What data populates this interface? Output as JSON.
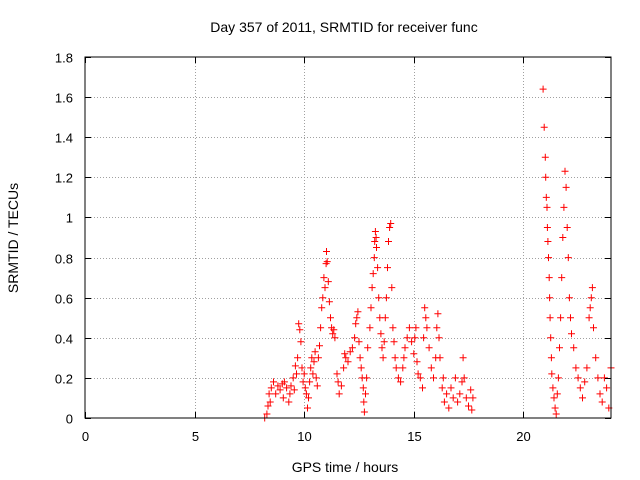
{
  "chart_data": {
    "type": "scatter",
    "title": "Day 357 of 2011, SRMTID for receiver func",
    "xlabel": "GPS time / hours",
    "ylabel": "SRMTID / TECUs",
    "xlim": [
      0,
      24
    ],
    "ylim": [
      0,
      1.8
    ],
    "grid": true,
    "legend": "none",
    "marker": "+",
    "colors": {
      "points": "#ff0000",
      "grid": "#a0a0a0",
      "axis": "#000000"
    },
    "x_ticks": [
      0,
      5,
      10,
      15,
      20
    ],
    "x_tick_labels": [
      "0",
      "5",
      "10",
      "15",
      "20"
    ],
    "y_ticks": [
      0,
      0.2,
      0.4,
      0.6,
      0.8,
      1.0,
      1.2,
      1.4,
      1.6,
      1.8
    ],
    "y_tick_labels": [
      "0",
      "0.2",
      "0.4",
      "0.6",
      "0.8",
      "1",
      "1.2",
      "1.4",
      "1.6",
      "1.8"
    ],
    "series": [
      {
        "name": "SRMTID",
        "points": [
          [
            8.2,
            0.0
          ],
          [
            8.3,
            0.02
          ],
          [
            8.35,
            0.06
          ],
          [
            8.4,
            0.12
          ],
          [
            8.45,
            0.08
          ],
          [
            8.5,
            0.15
          ],
          [
            8.6,
            0.18
          ],
          [
            8.7,
            0.12
          ],
          [
            8.8,
            0.16
          ],
          [
            8.9,
            0.14
          ],
          [
            9.0,
            0.17
          ],
          [
            9.05,
            0.1
          ],
          [
            9.1,
            0.18
          ],
          [
            9.2,
            0.15
          ],
          [
            9.3,
            0.08
          ],
          [
            9.35,
            0.12
          ],
          [
            9.4,
            0.16
          ],
          [
            9.5,
            0.2
          ],
          [
            9.55,
            0.14
          ],
          [
            9.6,
            0.26
          ],
          [
            9.65,
            0.22
          ],
          [
            9.7,
            0.3
          ],
          [
            9.75,
            0.47
          ],
          [
            9.8,
            0.44
          ],
          [
            9.85,
            0.38
          ],
          [
            9.9,
            0.25
          ],
          [
            9.95,
            0.18
          ],
          [
            10.0,
            0.22
          ],
          [
            10.05,
            0.15
          ],
          [
            10.1,
            0.12
          ],
          [
            10.15,
            0.05
          ],
          [
            10.2,
            0.1
          ],
          [
            10.25,
            0.18
          ],
          [
            10.3,
            0.25
          ],
          [
            10.35,
            0.3
          ],
          [
            10.4,
            0.22
          ],
          [
            10.45,
            0.28
          ],
          [
            10.5,
            0.33
          ],
          [
            10.55,
            0.2
          ],
          [
            10.6,
            0.16
          ],
          [
            10.65,
            0.3
          ],
          [
            10.7,
            0.36
          ],
          [
            10.75,
            0.45
          ],
          [
            10.8,
            0.55
          ],
          [
            10.85,
            0.6
          ],
          [
            10.9,
            0.7
          ],
          [
            10.95,
            0.65
          ],
          [
            11.0,
            0.77
          ],
          [
            11.02,
            0.83
          ],
          [
            11.05,
            0.78
          ],
          [
            11.1,
            0.68
          ],
          [
            11.15,
            0.58
          ],
          [
            11.2,
            0.5
          ],
          [
            11.25,
            0.45
          ],
          [
            11.3,
            0.42
          ],
          [
            11.35,
            0.44
          ],
          [
            11.4,
            0.4
          ],
          [
            11.5,
            0.22
          ],
          [
            11.55,
            0.18
          ],
          [
            11.6,
            0.12
          ],
          [
            11.7,
            0.16
          ],
          [
            11.8,
            0.25
          ],
          [
            11.85,
            0.32
          ],
          [
            11.9,
            0.3
          ],
          [
            12.0,
            0.28
          ],
          [
            12.1,
            0.33
          ],
          [
            12.2,
            0.35
          ],
          [
            12.3,
            0.4
          ],
          [
            12.35,
            0.47
          ],
          [
            12.4,
            0.5
          ],
          [
            12.45,
            0.53
          ],
          [
            12.5,
            0.38
          ],
          [
            12.55,
            0.3
          ],
          [
            12.6,
            0.25
          ],
          [
            12.65,
            0.2
          ],
          [
            12.7,
            0.15
          ],
          [
            12.72,
            0.08
          ],
          [
            12.75,
            0.03
          ],
          [
            12.8,
            0.12
          ],
          [
            12.85,
            0.2
          ],
          [
            12.9,
            0.35
          ],
          [
            13.0,
            0.45
          ],
          [
            13.05,
            0.55
          ],
          [
            13.1,
            0.65
          ],
          [
            13.15,
            0.72
          ],
          [
            13.2,
            0.8
          ],
          [
            13.22,
            0.88
          ],
          [
            13.25,
            0.93
          ],
          [
            13.28,
            0.9
          ],
          [
            13.3,
            0.85
          ],
          [
            13.35,
            0.75
          ],
          [
            13.4,
            0.6
          ],
          [
            13.45,
            0.5
          ],
          [
            13.5,
            0.42
          ],
          [
            13.55,
            0.35
          ],
          [
            13.6,
            0.3
          ],
          [
            13.65,
            0.38
          ],
          [
            13.7,
            0.5
          ],
          [
            13.75,
            0.6
          ],
          [
            13.8,
            0.75
          ],
          [
            13.85,
            0.88
          ],
          [
            13.9,
            0.95
          ],
          [
            13.95,
            0.97
          ],
          [
            14.0,
            0.65
          ],
          [
            14.05,
            0.45
          ],
          [
            14.1,
            0.38
          ],
          [
            14.15,
            0.3
          ],
          [
            14.2,
            0.25
          ],
          [
            14.3,
            0.2
          ],
          [
            14.4,
            0.18
          ],
          [
            14.5,
            0.25
          ],
          [
            14.55,
            0.3
          ],
          [
            14.6,
            0.35
          ],
          [
            14.7,
            0.4
          ],
          [
            14.8,
            0.45
          ],
          [
            14.9,
            0.38
          ],
          [
            15.0,
            0.32
          ],
          [
            15.05,
            0.4
          ],
          [
            15.1,
            0.45
          ],
          [
            15.15,
            0.28
          ],
          [
            15.2,
            0.22
          ],
          [
            15.3,
            0.2
          ],
          [
            15.4,
            0.15
          ],
          [
            15.45,
            0.4
          ],
          [
            15.5,
            0.55
          ],
          [
            15.55,
            0.5
          ],
          [
            15.6,
            0.45
          ],
          [
            15.7,
            0.35
          ],
          [
            15.8,
            0.25
          ],
          [
            15.9,
            0.2
          ],
          [
            16.0,
            0.3
          ],
          [
            16.05,
            0.45
          ],
          [
            16.1,
            0.52
          ],
          [
            16.15,
            0.4
          ],
          [
            16.2,
            0.3
          ],
          [
            16.3,
            0.15
          ],
          [
            16.35,
            0.2
          ],
          [
            16.4,
            0.08
          ],
          [
            16.5,
            0.12
          ],
          [
            16.6,
            0.05
          ],
          [
            16.7,
            0.15
          ],
          [
            16.8,
            0.1
          ],
          [
            16.9,
            0.2
          ],
          [
            17.0,
            0.08
          ],
          [
            17.1,
            0.12
          ],
          [
            17.2,
            0.18
          ],
          [
            17.25,
            0.3
          ],
          [
            17.3,
            0.2
          ],
          [
            17.4,
            0.1
          ],
          [
            17.5,
            0.06
          ],
          [
            17.6,
            0.14
          ],
          [
            17.65,
            0.04
          ],
          [
            17.7,
            0.1
          ],
          [
            20.9,
            1.64
          ],
          [
            20.95,
            1.45
          ],
          [
            21.0,
            1.3
          ],
          [
            21.02,
            1.2
          ],
          [
            21.05,
            1.1
          ],
          [
            21.08,
            1.05
          ],
          [
            21.1,
            0.95
          ],
          [
            21.12,
            0.88
          ],
          [
            21.15,
            0.8
          ],
          [
            21.18,
            0.7
          ],
          [
            21.2,
            0.6
          ],
          [
            21.22,
            0.5
          ],
          [
            21.25,
            0.4
          ],
          [
            21.28,
            0.3
          ],
          [
            21.3,
            0.22
          ],
          [
            21.35,
            0.15
          ],
          [
            21.4,
            0.1
          ],
          [
            21.45,
            0.05
          ],
          [
            21.5,
            0.02
          ],
          [
            21.55,
            0.12
          ],
          [
            21.6,
            0.2
          ],
          [
            21.65,
            0.35
          ],
          [
            21.7,
            0.5
          ],
          [
            21.75,
            0.7
          ],
          [
            21.8,
            0.9
          ],
          [
            21.85,
            1.05
          ],
          [
            21.9,
            1.23
          ],
          [
            21.95,
            1.15
          ],
          [
            22.0,
            0.95
          ],
          [
            22.05,
            0.8
          ],
          [
            22.1,
            0.6
          ],
          [
            22.15,
            0.5
          ],
          [
            22.2,
            0.42
          ],
          [
            22.3,
            0.35
          ],
          [
            22.4,
            0.25
          ],
          [
            22.5,
            0.2
          ],
          [
            22.6,
            0.15
          ],
          [
            22.7,
            0.1
          ],
          [
            22.8,
            0.18
          ],
          [
            22.9,
            0.25
          ],
          [
            23.0,
            0.5
          ],
          [
            23.05,
            0.55
          ],
          [
            23.1,
            0.6
          ],
          [
            23.15,
            0.65
          ],
          [
            23.2,
            0.45
          ],
          [
            23.3,
            0.3
          ],
          [
            23.4,
            0.2
          ],
          [
            23.5,
            0.12
          ],
          [
            23.6,
            0.08
          ],
          [
            23.7,
            0.2
          ],
          [
            23.8,
            0.15
          ],
          [
            23.9,
            0.05
          ],
          [
            24.0,
            0.25
          ]
        ]
      }
    ]
  }
}
